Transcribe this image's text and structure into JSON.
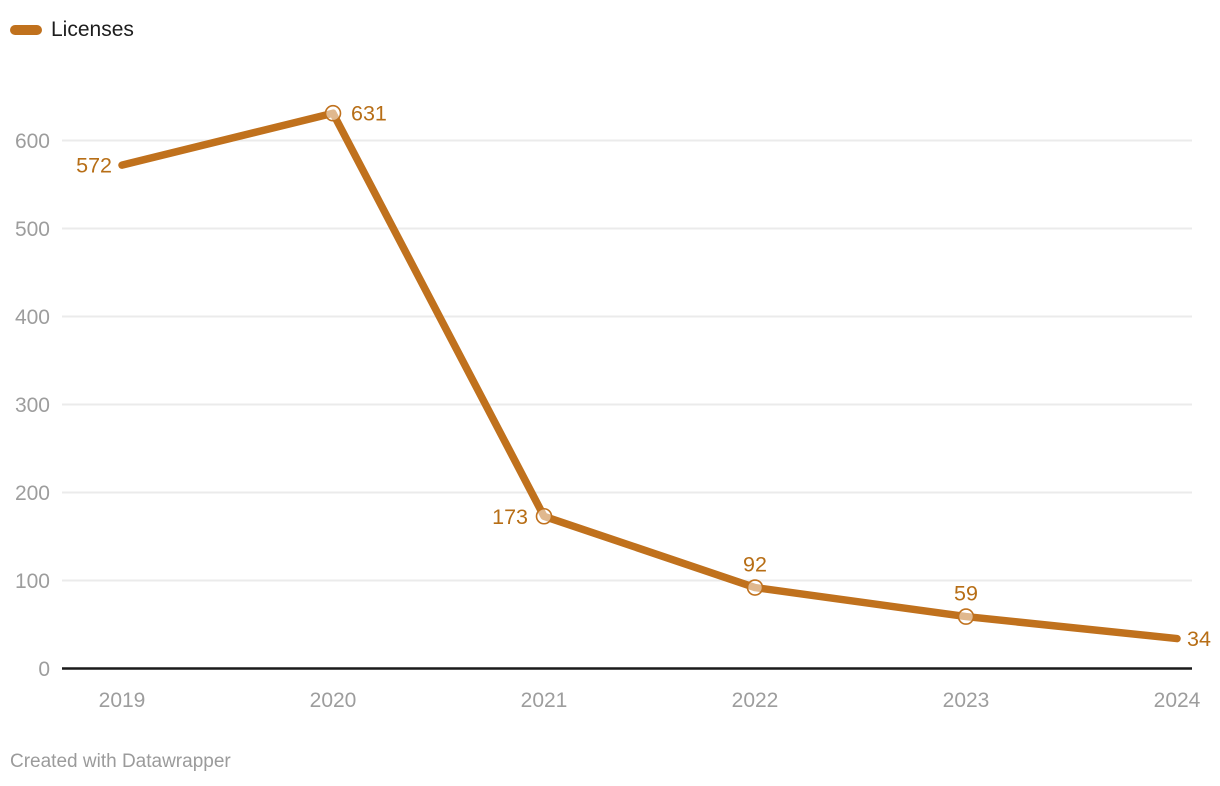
{
  "legend": {
    "items": [
      {
        "label": "Licenses",
        "color": "#C0711D"
      }
    ]
  },
  "footer": {
    "attribution": "Created with Datawrapper"
  },
  "colors": {
    "line": "#C0711D",
    "value_label": "#B76E16",
    "grid": "#EBEBEB",
    "axis": "#1A1A1A",
    "tick_text": "#9D9D9D",
    "legend_text": "#1D1D1D",
    "footer_text": "#9B9B9B"
  },
  "chart_data": {
    "type": "line",
    "title": "",
    "categories": [
      "2019",
      "2020",
      "2021",
      "2022",
      "2023",
      "2024"
    ],
    "series": [
      {
        "name": "Licenses",
        "color": "#C0711D",
        "values": [
          572,
          631,
          173,
          92,
          59,
          34
        ]
      }
    ],
    "ylim": [
      0,
      600
    ],
    "yticks": [
      0,
      100,
      200,
      300,
      400,
      500,
      600
    ],
    "grid": true,
    "legend_position": "top-left",
    "markers": [
      false,
      true,
      true,
      true,
      true,
      false
    ],
    "label_positions": [
      "left",
      "right",
      "left",
      "above",
      "above",
      "right"
    ]
  }
}
